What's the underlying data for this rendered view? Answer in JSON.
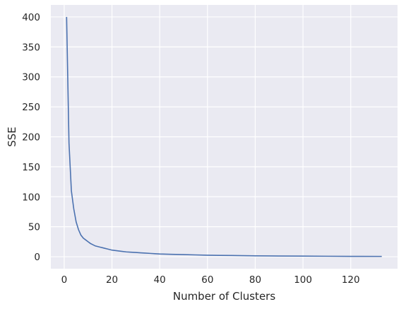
{
  "chart_data": {
    "type": "line",
    "xlabel": "Number of Clusters",
    "ylabel": "SSE",
    "xlim": [
      -5.6,
      139.6
    ],
    "ylim": [
      -20,
      420
    ],
    "xticks": [
      0,
      20,
      40,
      60,
      80,
      100,
      120
    ],
    "yticks": [
      0,
      50,
      100,
      150,
      200,
      250,
      300,
      350,
      400
    ],
    "grid": true,
    "series": [
      {
        "color": "#4c72b0",
        "x": [
          1,
          2,
          3,
          4,
          5,
          6,
          7,
          8,
          9,
          10,
          11,
          12,
          13,
          14,
          15,
          16,
          17,
          18,
          19,
          20,
          22,
          24,
          26,
          28,
          30,
          32,
          34,
          36,
          38,
          40,
          45,
          50,
          55,
          60,
          65,
          70,
          75,
          80,
          90,
          100,
          110,
          120,
          133
        ],
        "y": [
          400,
          190,
          110,
          80,
          58,
          45,
          36,
          31,
          28,
          25,
          22,
          20,
          18,
          17,
          16,
          15,
          14,
          13,
          12,
          11,
          10,
          9,
          8,
          7.5,
          7,
          6.5,
          6,
          5.5,
          5,
          4.5,
          4,
          3.5,
          3,
          2.5,
          2.2,
          2,
          1.8,
          1.5,
          1.2,
          1,
          0.8,
          0.6,
          0.5
        ]
      }
    ]
  },
  "colors": {
    "plot_background": "#eaeaf2",
    "grid": "#ffffff",
    "line": "#4c72b0",
    "text": "#262626"
  }
}
